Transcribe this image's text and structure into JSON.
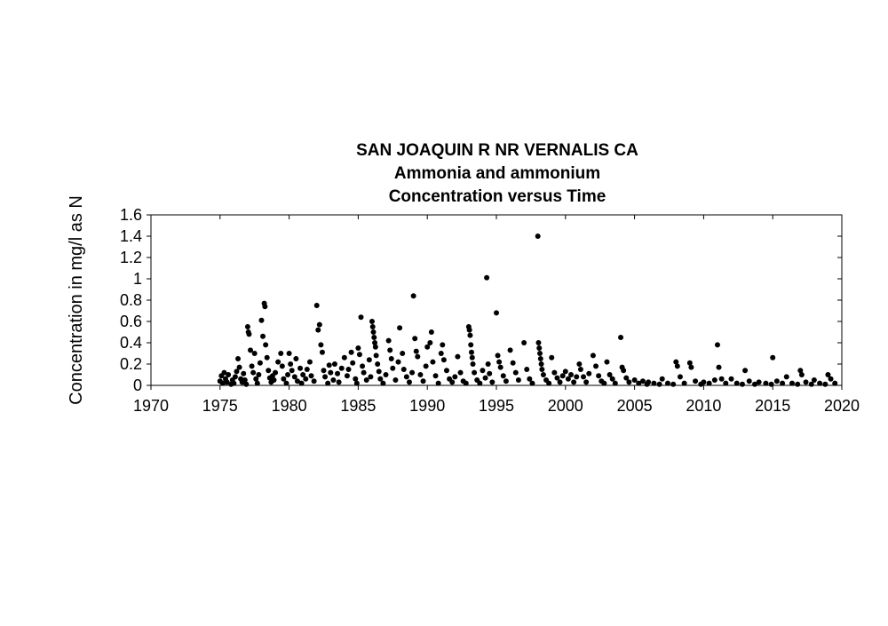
{
  "chart_data": {
    "type": "scatter",
    "title_lines": [
      "SAN JOAQUIN R NR VERNALIS CA",
      "Ammonia and ammonium",
      "Concentration versus Time"
    ],
    "xlabel": "",
    "ylabel": "Concentration in mg/l as N",
    "xlim": [
      1970,
      2020
    ],
    "ylim": [
      0,
      1.6
    ],
    "x_ticks": [
      1970,
      1975,
      1980,
      1985,
      1990,
      1995,
      2000,
      2005,
      2010,
      2015,
      2020
    ],
    "y_ticks": [
      0,
      0.2,
      0.4,
      0.6,
      0.8,
      1,
      1.2,
      1.4,
      1.6
    ],
    "grid": false,
    "legend": "none",
    "marker_color": "#000000",
    "series": [
      {
        "points": [
          [
            1975.0,
            0.04
          ],
          [
            1975.1,
            0.09
          ],
          [
            1975.2,
            0.02
          ],
          [
            1975.3,
            0.12
          ],
          [
            1975.4,
            0.06
          ],
          [
            1975.5,
            0.03
          ],
          [
            1975.6,
            0.1
          ],
          [
            1975.8,
            0.01
          ],
          [
            1975.9,
            0.05
          ],
          [
            1976.0,
            0.02
          ],
          [
            1976.1,
            0.08
          ],
          [
            1976.2,
            0.13
          ],
          [
            1976.3,
            0.25
          ],
          [
            1976.4,
            0.17
          ],
          [
            1976.5,
            0.06
          ],
          [
            1976.6,
            0.03
          ],
          [
            1976.7,
            0.11
          ],
          [
            1976.8,
            0.05
          ],
          [
            1976.9,
            0.01
          ],
          [
            1977.0,
            0.55
          ],
          [
            1977.05,
            0.5
          ],
          [
            1977.1,
            0.48
          ],
          [
            1977.2,
            0.33
          ],
          [
            1977.3,
            0.18
          ],
          [
            1977.4,
            0.12
          ],
          [
            1977.5,
            0.3
          ],
          [
            1977.6,
            0.06
          ],
          [
            1977.7,
            0.02
          ],
          [
            1977.8,
            0.1
          ],
          [
            1977.9,
            0.21
          ],
          [
            1978.0,
            0.61
          ],
          [
            1978.1,
            0.46
          ],
          [
            1978.2,
            0.77
          ],
          [
            1978.25,
            0.74
          ],
          [
            1978.3,
            0.38
          ],
          [
            1978.4,
            0.26
          ],
          [
            1978.5,
            0.14
          ],
          [
            1978.6,
            0.07
          ],
          [
            1978.7,
            0.03
          ],
          [
            1978.8,
            0.09
          ],
          [
            1978.9,
            0.05
          ],
          [
            1979.0,
            0.12
          ],
          [
            1979.2,
            0.22
          ],
          [
            1979.4,
            0.3
          ],
          [
            1979.5,
            0.18
          ],
          [
            1979.6,
            0.06
          ],
          [
            1979.8,
            0.02
          ],
          [
            1979.9,
            0.1
          ],
          [
            1980.0,
            0.3
          ],
          [
            1980.1,
            0.2
          ],
          [
            1980.2,
            0.14
          ],
          [
            1980.4,
            0.08
          ],
          [
            1980.5,
            0.25
          ],
          [
            1980.6,
            0.04
          ],
          [
            1980.8,
            0.16
          ],
          [
            1980.9,
            0.02
          ],
          [
            1981.0,
            0.1
          ],
          [
            1981.2,
            0.06
          ],
          [
            1981.3,
            0.15
          ],
          [
            1981.5,
            0.22
          ],
          [
            1981.6,
            0.09
          ],
          [
            1981.8,
            0.04
          ],
          [
            1982.0,
            0.75
          ],
          [
            1982.1,
            0.52
          ],
          [
            1982.2,
            0.57
          ],
          [
            1982.3,
            0.38
          ],
          [
            1982.4,
            0.31
          ],
          [
            1982.5,
            0.14
          ],
          [
            1982.6,
            0.08
          ],
          [
            1982.8,
            0.02
          ],
          [
            1982.9,
            0.19
          ],
          [
            1983.0,
            0.12
          ],
          [
            1983.2,
            0.05
          ],
          [
            1983.3,
            0.2
          ],
          [
            1983.5,
            0.11
          ],
          [
            1983.6,
            0.03
          ],
          [
            1983.8,
            0.16
          ],
          [
            1984.0,
            0.26
          ],
          [
            1984.2,
            0.09
          ],
          [
            1984.3,
            0.15
          ],
          [
            1984.5,
            0.31
          ],
          [
            1984.6,
            0.21
          ],
          [
            1984.8,
            0.06
          ],
          [
            1984.9,
            0.02
          ],
          [
            1985.0,
            0.35
          ],
          [
            1985.1,
            0.29
          ],
          [
            1985.2,
            0.64
          ],
          [
            1985.3,
            0.18
          ],
          [
            1985.4,
            0.12
          ],
          [
            1985.6,
            0.05
          ],
          [
            1985.8,
            0.24
          ],
          [
            1985.9,
            0.08
          ],
          [
            1986.0,
            0.6
          ],
          [
            1986.05,
            0.55
          ],
          [
            1986.1,
            0.5
          ],
          [
            1986.15,
            0.45
          ],
          [
            1986.2,
            0.4
          ],
          [
            1986.25,
            0.36
          ],
          [
            1986.3,
            0.28
          ],
          [
            1986.4,
            0.2
          ],
          [
            1986.5,
            0.13
          ],
          [
            1986.6,
            0.06
          ],
          [
            1986.8,
            0.02
          ],
          [
            1987.0,
            0.1
          ],
          [
            1987.2,
            0.42
          ],
          [
            1987.3,
            0.33
          ],
          [
            1987.4,
            0.25
          ],
          [
            1987.5,
            0.16
          ],
          [
            1987.7,
            0.05
          ],
          [
            1987.9,
            0.22
          ],
          [
            1988.0,
            0.54
          ],
          [
            1988.2,
            0.3
          ],
          [
            1988.3,
            0.15
          ],
          [
            1988.5,
            0.08
          ],
          [
            1988.7,
            0.03
          ],
          [
            1988.9,
            0.12
          ],
          [
            1989.0,
            0.84
          ],
          [
            1989.1,
            0.44
          ],
          [
            1989.2,
            0.32
          ],
          [
            1989.3,
            0.27
          ],
          [
            1989.5,
            0.1
          ],
          [
            1989.7,
            0.04
          ],
          [
            1989.9,
            0.18
          ],
          [
            1990.0,
            0.36
          ],
          [
            1990.2,
            0.4
          ],
          [
            1990.3,
            0.5
          ],
          [
            1990.4,
            0.22
          ],
          [
            1990.6,
            0.09
          ],
          [
            1990.8,
            0.02
          ],
          [
            1991.0,
            0.3
          ],
          [
            1991.1,
            0.38
          ],
          [
            1991.2,
            0.24
          ],
          [
            1991.4,
            0.14
          ],
          [
            1991.6,
            0.06
          ],
          [
            1991.8,
            0.03
          ],
          [
            1992.0,
            0.08
          ],
          [
            1992.2,
            0.27
          ],
          [
            1992.4,
            0.12
          ],
          [
            1992.6,
            0.04
          ],
          [
            1992.8,
            0.02
          ],
          [
            1993.0,
            0.55
          ],
          [
            1993.05,
            0.52
          ],
          [
            1993.1,
            0.47
          ],
          [
            1993.15,
            0.38
          ],
          [
            1993.2,
            0.31
          ],
          [
            1993.25,
            0.26
          ],
          [
            1993.3,
            0.2
          ],
          [
            1993.4,
            0.12
          ],
          [
            1993.6,
            0.05
          ],
          [
            1993.8,
            0.02
          ],
          [
            1994.0,
            0.14
          ],
          [
            1994.2,
            0.07
          ],
          [
            1994.3,
            1.01
          ],
          [
            1994.4,
            0.2
          ],
          [
            1994.5,
            0.11
          ],
          [
            1994.7,
            0.03
          ],
          [
            1995.0,
            0.68
          ],
          [
            1995.1,
            0.28
          ],
          [
            1995.2,
            0.22
          ],
          [
            1995.3,
            0.17
          ],
          [
            1995.5,
            0.09
          ],
          [
            1995.7,
            0.04
          ],
          [
            1996.0,
            0.33
          ],
          [
            1996.2,
            0.21
          ],
          [
            1996.4,
            0.12
          ],
          [
            1996.6,
            0.05
          ],
          [
            1997.0,
            0.4
          ],
          [
            1997.2,
            0.15
          ],
          [
            1997.4,
            0.06
          ],
          [
            1997.6,
            0.02
          ],
          [
            1998.0,
            1.4
          ],
          [
            1998.05,
            0.4
          ],
          [
            1998.1,
            0.35
          ],
          [
            1998.15,
            0.3
          ],
          [
            1998.2,
            0.25
          ],
          [
            1998.25,
            0.2
          ],
          [
            1998.3,
            0.15
          ],
          [
            1998.4,
            0.1
          ],
          [
            1998.6,
            0.05
          ],
          [
            1998.8,
            0.02
          ],
          [
            1999.0,
            0.26
          ],
          [
            1999.2,
            0.12
          ],
          [
            1999.4,
            0.07
          ],
          [
            1999.6,
            0.03
          ],
          [
            1999.8,
            0.09
          ],
          [
            2000.0,
            0.13
          ],
          [
            2000.2,
            0.06
          ],
          [
            2000.4,
            0.1
          ],
          [
            2000.6,
            0.03
          ],
          [
            2000.8,
            0.08
          ],
          [
            2001.0,
            0.2
          ],
          [
            2001.1,
            0.15
          ],
          [
            2001.3,
            0.08
          ],
          [
            2001.5,
            0.03
          ],
          [
            2001.7,
            0.11
          ],
          [
            2002.0,
            0.28
          ],
          [
            2002.2,
            0.18
          ],
          [
            2002.4,
            0.09
          ],
          [
            2002.6,
            0.04
          ],
          [
            2002.8,
            0.02
          ],
          [
            2003.0,
            0.22
          ],
          [
            2003.2,
            0.1
          ],
          [
            2003.4,
            0.06
          ],
          [
            2003.6,
            0.02
          ],
          [
            2004.0,
            0.45
          ],
          [
            2004.1,
            0.17
          ],
          [
            2004.2,
            0.14
          ],
          [
            2004.4,
            0.07
          ],
          [
            2004.6,
            0.03
          ],
          [
            2005.0,
            0.05
          ],
          [
            2005.3,
            0.02
          ],
          [
            2005.6,
            0.04
          ],
          [
            2005.9,
            0.01
          ],
          [
            2006.0,
            0.03
          ],
          [
            2006.4,
            0.02
          ],
          [
            2006.8,
            0.01
          ],
          [
            2007.0,
            0.06
          ],
          [
            2007.4,
            0.02
          ],
          [
            2007.8,
            0.01
          ],
          [
            2008.0,
            0.22
          ],
          [
            2008.1,
            0.18
          ],
          [
            2008.3,
            0.08
          ],
          [
            2008.6,
            0.02
          ],
          [
            2009.0,
            0.21
          ],
          [
            2009.1,
            0.17
          ],
          [
            2009.4,
            0.04
          ],
          [
            2009.8,
            0.01
          ],
          [
            2010.0,
            0.03
          ],
          [
            2010.4,
            0.02
          ],
          [
            2010.8,
            0.05
          ],
          [
            2011.0,
            0.38
          ],
          [
            2011.1,
            0.17
          ],
          [
            2011.3,
            0.06
          ],
          [
            2011.6,
            0.02
          ],
          [
            2012.0,
            0.06
          ],
          [
            2012.4,
            0.02
          ],
          [
            2012.8,
            0.01
          ],
          [
            2013.0,
            0.14
          ],
          [
            2013.3,
            0.04
          ],
          [
            2013.7,
            0.01
          ],
          [
            2014.0,
            0.03
          ],
          [
            2014.5,
            0.02
          ],
          [
            2014.9,
            0.01
          ],
          [
            2015.0,
            0.26
          ],
          [
            2015.3,
            0.04
          ],
          [
            2015.7,
            0.02
          ],
          [
            2016.0,
            0.08
          ],
          [
            2016.4,
            0.02
          ],
          [
            2016.8,
            0.01
          ],
          [
            2017.0,
            0.14
          ],
          [
            2017.1,
            0.1
          ],
          [
            2017.4,
            0.03
          ],
          [
            2017.8,
            0.01
          ],
          [
            2018.0,
            0.05
          ],
          [
            2018.4,
            0.02
          ],
          [
            2018.8,
            0.01
          ],
          [
            2019.0,
            0.1
          ],
          [
            2019.2,
            0.06
          ],
          [
            2019.5,
            0.02
          ]
        ]
      }
    ]
  }
}
